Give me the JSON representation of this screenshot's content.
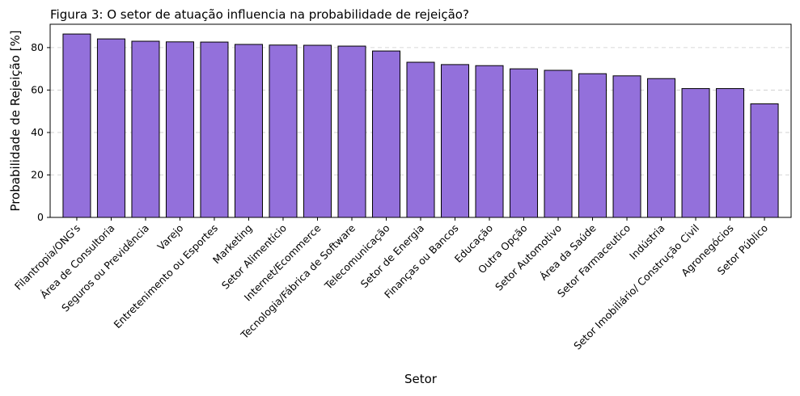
{
  "chart_data": {
    "type": "bar",
    "title": "Figura 3: O setor de atuação influencia na probabilidade de rejeição?",
    "xlabel": "Setor",
    "ylabel": "Probabilidade de Rejeição [%]",
    "ylim": [
      0,
      91
    ],
    "yticks": [
      0,
      20,
      40,
      60,
      80
    ],
    "grid": "y-dashed",
    "bar_color": "#9370DB",
    "edge_color": "#000000",
    "categories": [
      "Filantropia/ONG's",
      "Área de Consultoria",
      "Seguros ou Previdência",
      "Varejo",
      "Entretenimento ou Esportes",
      "Marketing",
      "Setor Alimentício",
      "Internet/Ecommerce",
      "Tecnologia/Fábrica de Software",
      "Telecomunicação",
      "Setor de Energia",
      "Finanças ou Bancos",
      "Educação",
      "Outra Opção",
      "Setor Automotivo",
      "Área da Saúde",
      "Setor Farmaceutico",
      "Indústria",
      "Setor Imobiliário/ Construção Civil",
      "Agronegócios",
      "Setor Público"
    ],
    "values": [
      86.4,
      84.1,
      83.0,
      82.7,
      82.6,
      81.5,
      81.2,
      81.1,
      80.7,
      78.4,
      73.1,
      72.0,
      71.5,
      70.0,
      69.3,
      67.7,
      66.7,
      65.4,
      60.7,
      60.7,
      53.5
    ]
  }
}
